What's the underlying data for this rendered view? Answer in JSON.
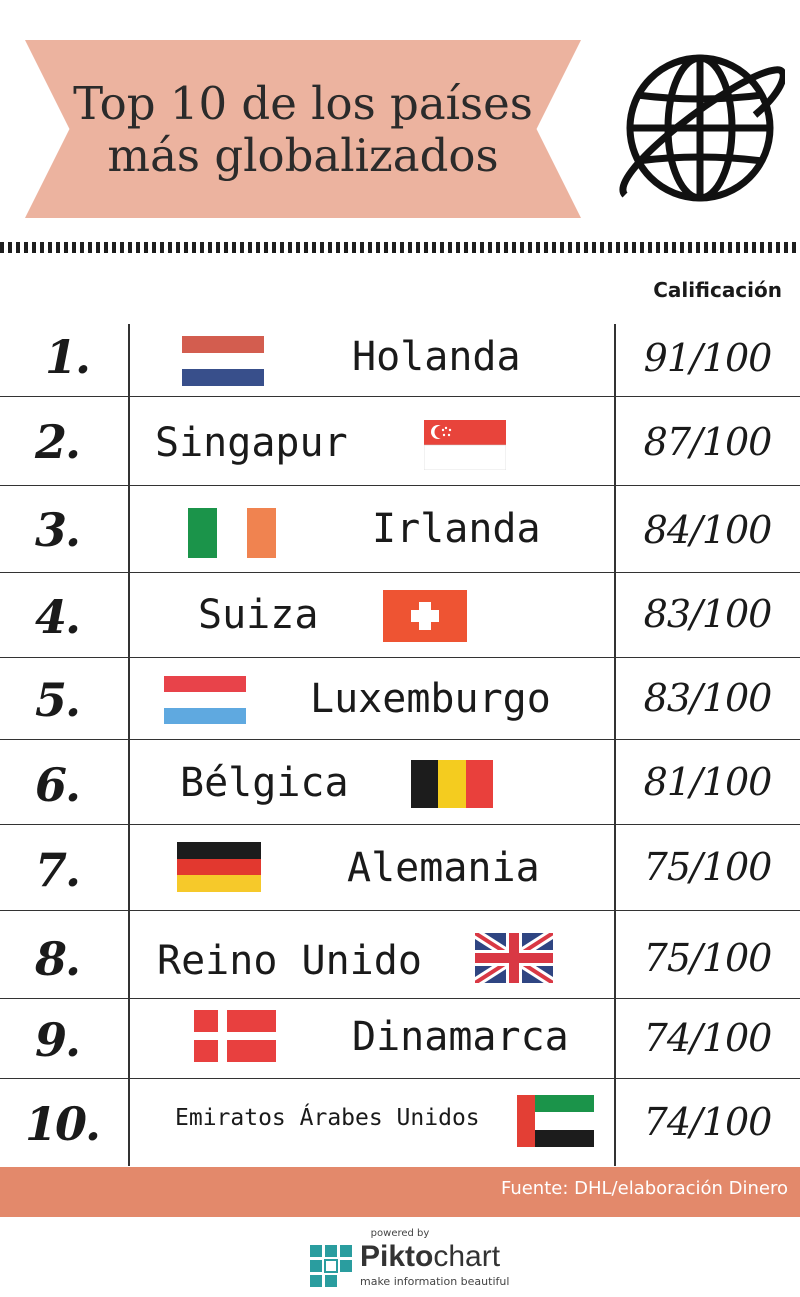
{
  "header": {
    "title_line1": "Top 10 de los países",
    "title_line2": "más globalizados",
    "score_column_label": "Calificación"
  },
  "rows": [
    {
      "rank": "1.",
      "country": "Holanda",
      "score": "91/100",
      "flag": "netherlands-flag"
    },
    {
      "rank": "2.",
      "country": "Singapur",
      "score": "87/100",
      "flag": "singapore-flag"
    },
    {
      "rank": "3.",
      "country": "Irlanda",
      "score": "84/100",
      "flag": "ireland-flag"
    },
    {
      "rank": "4.",
      "country": "Suiza",
      "score": "83/100",
      "flag": "switzerland-flag"
    },
    {
      "rank": "5.",
      "country": "Luxemburgo",
      "score": "83/100",
      "flag": "luxembourg-flag"
    },
    {
      "rank": "6.",
      "country": "Bélgica",
      "score": "81/100",
      "flag": "belgium-flag"
    },
    {
      "rank": "7.",
      "country": "Alemania",
      "score": "75/100",
      "flag": "germany-flag"
    },
    {
      "rank": "8.",
      "country": "Reino Unido",
      "score": "75/100",
      "flag": "united-kingdom-flag"
    },
    {
      "rank": "9.",
      "country": "Dinamarca",
      "score": "74/100",
      "flag": "denmark-flag"
    },
    {
      "rank": "10.",
      "country": "Emiratos Árabes Unidos",
      "score": "74/100",
      "flag": "uae-flag"
    }
  ],
  "footer": {
    "source": "Fuente: DHL/elaboración Dinero",
    "powered_by": "powered by",
    "brand_bold": "Pikto",
    "brand_light": "chart",
    "tagline": "make information beautiful"
  },
  "colors": {
    "banner": "#ecb39f",
    "footer_bar": "#e3896b"
  }
}
